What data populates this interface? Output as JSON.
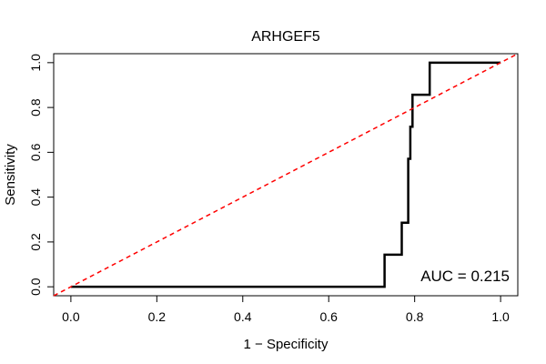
{
  "chart_data": {
    "type": "line",
    "title": "ARHGEF5",
    "xlabel": "1 − Specificity",
    "ylabel": "Sensitivity",
    "xlim": [
      -0.04,
      1.04
    ],
    "ylim": [
      -0.04,
      1.04
    ],
    "xticks": [
      0.0,
      0.2,
      0.4,
      0.6,
      0.8,
      1.0
    ],
    "yticks": [
      0.0,
      0.2,
      0.4,
      0.6,
      0.8,
      1.0
    ],
    "xtick_labels": [
      "0.0",
      "0.2",
      "0.4",
      "0.6",
      "0.8",
      "1.0"
    ],
    "ytick_labels": [
      "0.0",
      "0.2",
      "0.4",
      "0.6",
      "0.8",
      "1.0"
    ],
    "grid": false,
    "series": [
      {
        "style": "solid",
        "color": "#000000",
        "x": [
          0.0,
          0.73,
          0.73,
          0.77,
          0.77,
          0.785,
          0.785,
          0.79,
          0.79,
          0.795,
          0.795,
          0.8,
          0.8,
          0.835,
          0.835,
          1.0
        ],
        "y": [
          0.0,
          0.0,
          0.143,
          0.143,
          0.286,
          0.286,
          0.571,
          0.571,
          0.714,
          0.714,
          0.857,
          0.857,
          0.857,
          0.857,
          1.0,
          1.0
        ]
      },
      {
        "style": "dashed",
        "color": "#ff0000",
        "x": [
          -0.04,
          1.04
        ],
        "y": [
          -0.04,
          1.04
        ]
      }
    ],
    "annotations": [
      {
        "text": "AUC = 0.215",
        "position": "bottom-right"
      }
    ]
  }
}
